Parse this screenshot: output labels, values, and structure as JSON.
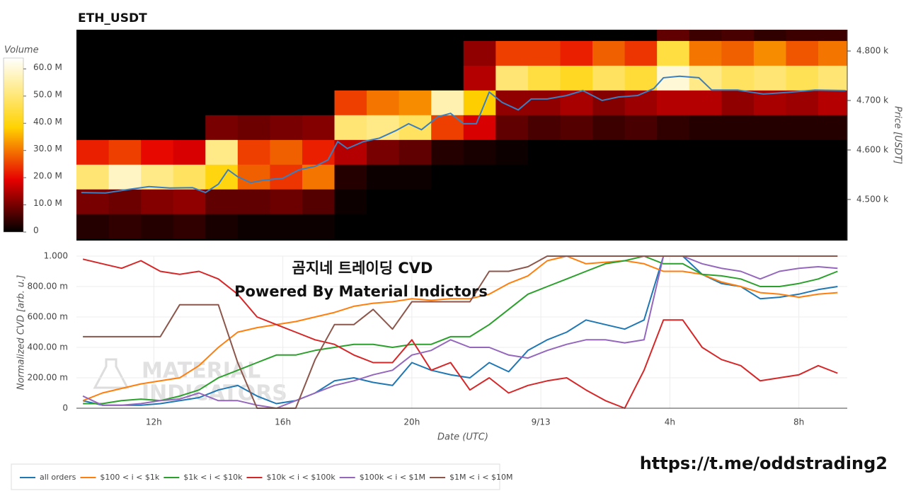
{
  "chart_data": [
    {
      "type": "heatmap",
      "title": "ETH_USDT",
      "ylabel": "Price [USDT]",
      "colorbar_title": "Volume",
      "colorscale": "hot",
      "xlim": [
        9.6,
        33.5
      ],
      "ylim": [
        4417,
        4843
      ],
      "yticks": [
        {
          "value": 4500,
          "label": "4.500 k"
        },
        {
          "value": 4600,
          "label": "4.600 k"
        },
        {
          "value": 4700,
          "label": "4.700 k"
        },
        {
          "value": 4800,
          "label": "4.800 k"
        }
      ],
      "zlim": [
        0,
        64
      ],
      "zticks": [
        0,
        {
          "value": 10,
          "label": "10.0 M"
        },
        {
          "value": 20,
          "label": "20.0 M"
        },
        {
          "value": 30,
          "label": "30.0 M"
        },
        {
          "value": 40,
          "label": "40.0 M"
        },
        {
          "value": 50,
          "label": "50.0 M"
        },
        {
          "value": 60,
          "label": "60.0 M"
        }
      ],
      "x_edges": [
        9.6,
        10.6,
        11.6,
        12.6,
        13.6,
        14.6,
        15.6,
        16.6,
        17.6,
        18.6,
        19.6,
        20.6,
        21.6,
        22.6,
        23.6,
        24.6,
        25.6,
        26.6,
        27.6,
        28.6,
        29.6,
        30.6,
        31.6,
        32.6,
        33.5
      ],
      "y_edges": [
        4421,
        4471,
        4521,
        4571,
        4621,
        4671,
        4721,
        4771,
        4821,
        4871
      ],
      "z": [
        [
          3,
          4,
          3,
          4,
          2,
          1,
          1,
          1,
          0,
          0,
          0,
          0,
          0,
          0,
          0,
          0,
          0,
          0,
          0,
          0,
          0,
          0,
          0,
          0
        ],
        [
          10,
          9,
          11,
          12,
          8,
          8,
          9,
          7,
          1,
          0,
          0,
          0,
          0,
          0,
          0,
          0,
          0,
          0,
          0,
          0,
          0,
          0,
          0,
          0
        ],
        [
          50,
          58,
          52,
          48,
          40,
          28,
          24,
          30,
          3,
          1,
          1,
          0,
          0,
          0,
          0,
          0,
          0,
          0,
          0,
          0,
          0,
          0,
          0,
          0
        ],
        [
          22,
          25,
          20,
          18,
          52,
          25,
          28,
          22,
          15,
          10,
          8,
          3,
          2,
          1,
          0,
          0,
          0,
          0,
          0,
          0,
          0,
          0,
          0,
          0
        ],
        [
          0,
          0,
          0,
          0,
          10,
          9,
          10,
          11,
          50,
          52,
          48,
          25,
          18,
          8,
          6,
          7,
          5,
          6,
          4,
          3,
          3,
          3,
          3,
          3
        ],
        [
          0,
          0,
          0,
          0,
          0,
          0,
          0,
          0,
          25,
          30,
          32,
          56,
          38,
          12,
          12,
          14,
          11,
          13,
          15,
          15,
          12,
          14,
          13,
          15
        ],
        [
          0,
          0,
          0,
          0,
          0,
          0,
          0,
          0,
          0,
          0,
          0,
          0,
          15,
          50,
          45,
          42,
          48,
          44,
          60,
          52,
          48,
          50,
          47,
          50
        ],
        [
          0,
          0,
          0,
          0,
          0,
          0,
          0,
          0,
          0,
          0,
          0,
          0,
          12,
          25,
          25,
          22,
          28,
          24,
          45,
          30,
          28,
          32,
          27,
          30
        ],
        [
          0,
          0,
          0,
          0,
          0,
          0,
          0,
          0,
          0,
          0,
          0,
          0,
          0,
          0,
          0,
          0,
          0,
          0,
          8,
          5,
          6,
          4,
          5,
          5
        ]
      ],
      "line": {
        "color": "#3a7fc1",
        "x": [
          9.75,
          10.5,
          11.2,
          11.85,
          12.5,
          13.2,
          13.6,
          14,
          14.3,
          14.6,
          15,
          15.4,
          16,
          16.5,
          17,
          17.4,
          17.7,
          18,
          18.5,
          19,
          19.5,
          19.9,
          20.3,
          20.8,
          21.2,
          21.6,
          22,
          22.4,
          22.8,
          23.3,
          23.7,
          24.2,
          24.8,
          25.3,
          25.9,
          26.4,
          27,
          27.5,
          27.8,
          28.3,
          28.9,
          29.3,
          30.1,
          30.9,
          31.6,
          32.5,
          33.45
        ],
        "values": [
          4514,
          4513,
          4520,
          4526,
          4523,
          4524,
          4514,
          4531,
          4560,
          4546,
          4534,
          4539,
          4543,
          4560,
          4567,
          4580,
          4617,
          4603,
          4617,
          4624,
          4639,
          4653,
          4641,
          4667,
          4674,
          4653,
          4653,
          4717,
          4696,
          4681,
          4703,
          4703,
          4710,
          4720,
          4700,
          4707,
          4710,
          4724,
          4746,
          4749,
          4746,
          4721,
          4721,
          4713,
          4716,
          4721,
          4720
        ]
      }
    },
    {
      "type": "line",
      "xlabel": "Date (UTC)",
      "ylabel": "Normalized CVD [arb. u.]",
      "annotations": [
        "곰지네 트레이딩 CVD",
        "Powered By Material Indictors"
      ],
      "watermark": [
        "MATERIAL",
        "INDICATORS"
      ],
      "grid": true,
      "legend": "bottom-left",
      "xlim": [
        9.6,
        33.5
      ],
      "ylim": [
        0,
        1
      ],
      "xticks": [
        {
          "value": 12,
          "label": "12h"
        },
        {
          "value": 16,
          "label": "16h"
        },
        {
          "value": 20,
          "label": "20h"
        },
        {
          "value": 24,
          "label": "9/13"
        },
        {
          "value": 28,
          "label": "4h"
        },
        {
          "value": 32,
          "label": "8h"
        }
      ],
      "yticks": [
        0,
        {
          "value": 0.2,
          "label": "200.00 m"
        },
        {
          "value": 0.4,
          "label": "400.00 m"
        },
        {
          "value": 0.6,
          "label": "600.00 m"
        },
        {
          "value": 0.8,
          "label": "800.00 m"
        },
        {
          "value": 1,
          "label": "1.000"
        }
      ],
      "x": [
        9.8,
        10.4,
        11,
        11.6,
        12.2,
        12.8,
        13.4,
        14,
        14.6,
        15.2,
        15.8,
        16.4,
        17,
        17.6,
        18.2,
        18.8,
        19.4,
        20,
        20.6,
        21.2,
        21.8,
        22.4,
        23,
        23.6,
        24.2,
        24.8,
        25.4,
        26,
        26.6,
        27.2,
        27.8,
        28.4,
        29,
        29.6,
        30.2,
        30.8,
        31.4,
        32,
        32.6,
        33.2
      ],
      "series": [
        {
          "name": "all orders",
          "color": "#1f77b4",
          "values": [
            0.05,
            0.02,
            0.02,
            0.02,
            0.03,
            0.05,
            0.07,
            0.12,
            0.15,
            0.08,
            0.03,
            0.05,
            0.1,
            0.18,
            0.2,
            0.17,
            0.15,
            0.3,
            0.25,
            0.22,
            0.2,
            0.3,
            0.24,
            0.38,
            0.45,
            0.5,
            0.58,
            0.55,
            0.52,
            0.58,
            1.0,
            1.0,
            0.88,
            0.82,
            0.8,
            0.72,
            0.73,
            0.75,
            0.78,
            0.8
          ]
        },
        {
          "name": "$100 < i < $1k",
          "color": "#ff7f0e",
          "values": [
            0.05,
            0.1,
            0.13,
            0.16,
            0.18,
            0.2,
            0.28,
            0.4,
            0.5,
            0.53,
            0.55,
            0.57,
            0.6,
            0.63,
            0.67,
            0.69,
            0.7,
            0.72,
            0.71,
            0.72,
            0.72,
            0.75,
            0.82,
            0.87,
            0.97,
            1.0,
            0.95,
            0.96,
            0.97,
            0.95,
            0.9,
            0.9,
            0.88,
            0.83,
            0.8,
            0.76,
            0.75,
            0.73,
            0.75,
            0.76
          ]
        },
        {
          "name": "$1k < i < $10k",
          "color": "#2ca02c",
          "values": [
            0.03,
            0.03,
            0.05,
            0.06,
            0.05,
            0.08,
            0.12,
            0.2,
            0.25,
            0.3,
            0.35,
            0.35,
            0.38,
            0.4,
            0.42,
            0.42,
            0.4,
            0.42,
            0.42,
            0.47,
            0.47,
            0.55,
            0.65,
            0.75,
            0.8,
            0.85,
            0.9,
            0.95,
            0.97,
            1.0,
            0.95,
            0.95,
            0.88,
            0.87,
            0.85,
            0.8,
            0.8,
            0.82,
            0.85,
            0.9
          ]
        },
        {
          "name": "$10k < i < $100k",
          "color": "#d62728",
          "values": [
            0.98,
            0.95,
            0.92,
            0.97,
            0.9,
            0.88,
            0.9,
            0.85,
            0.75,
            0.6,
            0.55,
            0.5,
            0.45,
            0.42,
            0.35,
            0.3,
            0.3,
            0.45,
            0.25,
            0.3,
            0.12,
            0.2,
            0.1,
            0.15,
            0.18,
            0.2,
            0.12,
            0.05,
            0,
            0.25,
            0.58,
            0.58,
            0.4,
            0.32,
            0.28,
            0.18,
            0.2,
            0.22,
            0.28,
            0.23
          ]
        },
        {
          "name": "$100k < i < $1M",
          "color": "#9467bd",
          "values": [
            0.08,
            0.02,
            0.02,
            0.03,
            0.05,
            0.06,
            0.1,
            0.05,
            0.05,
            0.02,
            0,
            0.05,
            0.1,
            0.15,
            0.18,
            0.22,
            0.25,
            0.35,
            0.38,
            0.45,
            0.4,
            0.4,
            0.35,
            0.33,
            0.38,
            0.42,
            0.45,
            0.45,
            0.43,
            0.45,
            1.0,
            1.0,
            0.95,
            0.92,
            0.9,
            0.85,
            0.9,
            0.92,
            0.93,
            0.92
          ]
        },
        {
          "name": "$1M < i < $10M",
          "color": "#8c564b",
          "values": [
            0.47,
            0.47,
            0.47,
            0.47,
            0.47,
            0.68,
            0.68,
            0.68,
            0.3,
            0,
            0,
            0,
            0.32,
            0.55,
            0.55,
            0.65,
            0.52,
            0.7,
            0.7,
            0.7,
            0.7,
            0.9,
            0.9,
            0.93,
            1.0,
            1.0,
            1.0,
            1.0,
            1.0,
            1.0,
            1.0,
            1.0,
            1.0,
            1.0,
            1.0,
            1.0,
            1.0,
            1.0,
            1.0,
            1.0
          ]
        }
      ]
    }
  ],
  "footer_link": "https://t.me/oddstrading2"
}
